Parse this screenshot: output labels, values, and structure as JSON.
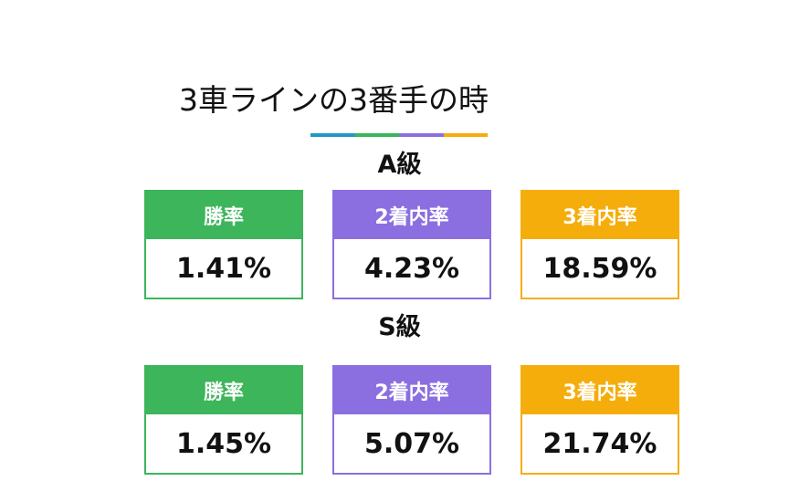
{
  "title": "3車ラインの3番手の時",
  "underline_colors": [
    "#2196c8",
    "#3cb55b",
    "#8b6fe0",
    "#f5ad0c"
  ],
  "colors": {
    "green": "#3cb55b",
    "purple": "#8b6fe0",
    "orange": "#f5ad0c"
  },
  "sections": [
    {
      "label": "A級",
      "cards": [
        {
          "head": "勝率",
          "value": "1.41%"
        },
        {
          "head": "2着内率",
          "value": "4.23%"
        },
        {
          "head": "3着内率",
          "value": "18.59%"
        }
      ]
    },
    {
      "label": "S級",
      "cards": [
        {
          "head": "勝率",
          "value": "1.45%"
        },
        {
          "head": "2着内率",
          "value": "5.07%"
        },
        {
          "head": "3着内率",
          "value": "21.74%"
        }
      ]
    }
  ]
}
